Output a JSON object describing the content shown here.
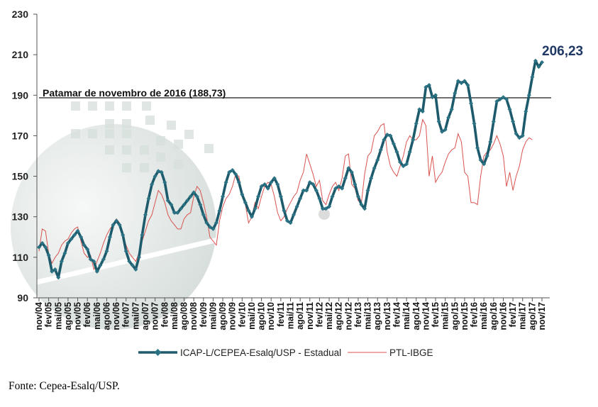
{
  "chart_data": {
    "type": "line",
    "title": "",
    "xlabel": "",
    "ylabel": "",
    "ylim": [
      90,
      230
    ],
    "yticks": [
      90,
      110,
      130,
      150,
      170,
      190,
      210,
      230
    ],
    "x_start": "nov/04",
    "x_end": "nov/17",
    "x_frequency": "monthly",
    "xtick_labels": [
      "nov/04",
      "fev/05",
      "mai/05",
      "ago/05",
      "nov/05",
      "fev/06",
      "mai/06",
      "ago/06",
      "nov/06",
      "fev/07",
      "mai/07",
      "ago/07",
      "nov/07",
      "fev/08",
      "mai/08",
      "ago/08",
      "nov/08",
      "fev/09",
      "mai/09",
      "ago/09",
      "nov/09",
      "fev/10",
      "mai/10",
      "ago/10",
      "nov/10",
      "fev/11",
      "mai/11",
      "ago/11",
      "nov/11",
      "fev/12",
      "mai/12",
      "ago/12",
      "nov/12",
      "fev/13",
      "mai/13",
      "ago/13",
      "nov/13",
      "fev/14",
      "mai/14",
      "ago/14",
      "nov/14",
      "fev/15",
      "mai/15",
      "ago/15",
      "nov/15",
      "fev/16",
      "mai/16",
      "ago/16",
      "nov/16",
      "fev/17",
      "mai/17",
      "ago/17",
      "nov/17"
    ],
    "grid": false,
    "legend_placement": "bottom",
    "series": [
      {
        "name": "ICAP-L/CEPEA-Esalq/USP - Estadual",
        "color": "#1d5a6b",
        "marker": "diamond",
        "values": [
          115,
          117,
          115,
          111,
          103,
          104,
          100,
          108,
          112,
          117,
          119,
          121,
          123,
          120,
          116,
          114,
          109,
          108,
          103,
          106,
          109,
          113,
          120,
          126,
          128,
          126,
          121,
          113,
          108,
          106,
          104,
          110,
          121,
          131,
          139,
          146,
          150,
          152.5,
          152,
          147,
          138,
          136,
          132,
          132,
          134,
          136,
          138,
          140,
          142,
          140,
          136,
          131,
          127,
          125,
          124,
          127,
          133,
          140,
          147,
          152,
          153,
          151,
          147,
          141,
          137,
          133,
          130,
          134,
          140,
          145,
          146,
          144,
          147,
          149,
          146,
          140,
          133,
          128,
          127,
          131,
          135,
          139,
          143,
          143,
          147,
          146,
          143,
          139,
          134,
          134,
          135,
          140,
          144,
          145,
          144,
          149,
          154,
          152,
          146,
          140,
          136,
          134,
          143,
          149,
          154,
          158,
          163,
          168,
          170.5,
          170,
          166,
          162,
          157,
          155,
          156,
          162,
          168,
          176,
          183,
          182,
          194,
          195,
          189,
          190,
          177,
          172,
          173,
          179,
          183,
          191,
          197,
          196,
          197,
          195,
          186,
          176,
          164,
          158,
          156,
          160,
          167,
          177,
          187,
          188,
          189,
          188,
          183,
          177,
          171,
          169,
          170,
          182,
          190,
          199,
          207,
          204,
          206.23
        ]
      },
      {
        "name": "PTL-IBGE",
        "color": "#d9534f",
        "values": [
          113,
          124,
          123,
          112,
          107,
          110,
          112,
          116,
          118,
          119,
          122,
          124,
          125,
          118,
          112,
          110,
          111,
          104,
          108,
          112,
          117,
          121,
          124,
          126,
          129,
          127,
          121,
          116,
          112,
          110,
          108,
          112,
          118,
          123,
          128,
          131,
          137,
          143,
          141,
          137,
          131,
          128,
          126,
          124,
          124,
          129,
          131,
          132,
          140,
          145,
          143,
          137,
          130,
          120,
          118,
          116,
          128,
          135,
          139,
          141,
          145,
          151,
          150,
          141,
          136,
          127,
          130,
          137,
          134,
          140,
          145,
          147,
          146,
          140,
          132,
          128,
          130,
          134,
          137,
          140,
          142,
          148,
          152,
          161,
          156,
          151,
          145,
          148,
          138,
          136,
          141,
          145,
          147,
          143,
          149,
          160,
          161,
          146,
          144,
          138,
          137,
          151,
          160,
          162,
          170,
          172,
          175,
          176,
          162,
          155,
          152,
          150,
          155,
          160,
          167,
          170,
          168,
          168,
          170,
          178,
          175,
          150,
          160,
          147,
          150,
          152,
          157,
          161,
          163,
          164,
          171,
          167,
          152,
          150,
          137,
          137,
          136,
          150,
          160,
          162,
          163,
          166,
          170,
          166,
          160,
          145,
          152,
          143,
          150,
          155,
          163,
          167,
          169,
          168
        ]
      }
    ],
    "reference_line": {
      "value": 188.73,
      "label": "Patamar de novembro de 2016 (188,73)"
    },
    "last_value_label": "206,23"
  },
  "source": "Fonte: Cepea-Esalq/USP."
}
